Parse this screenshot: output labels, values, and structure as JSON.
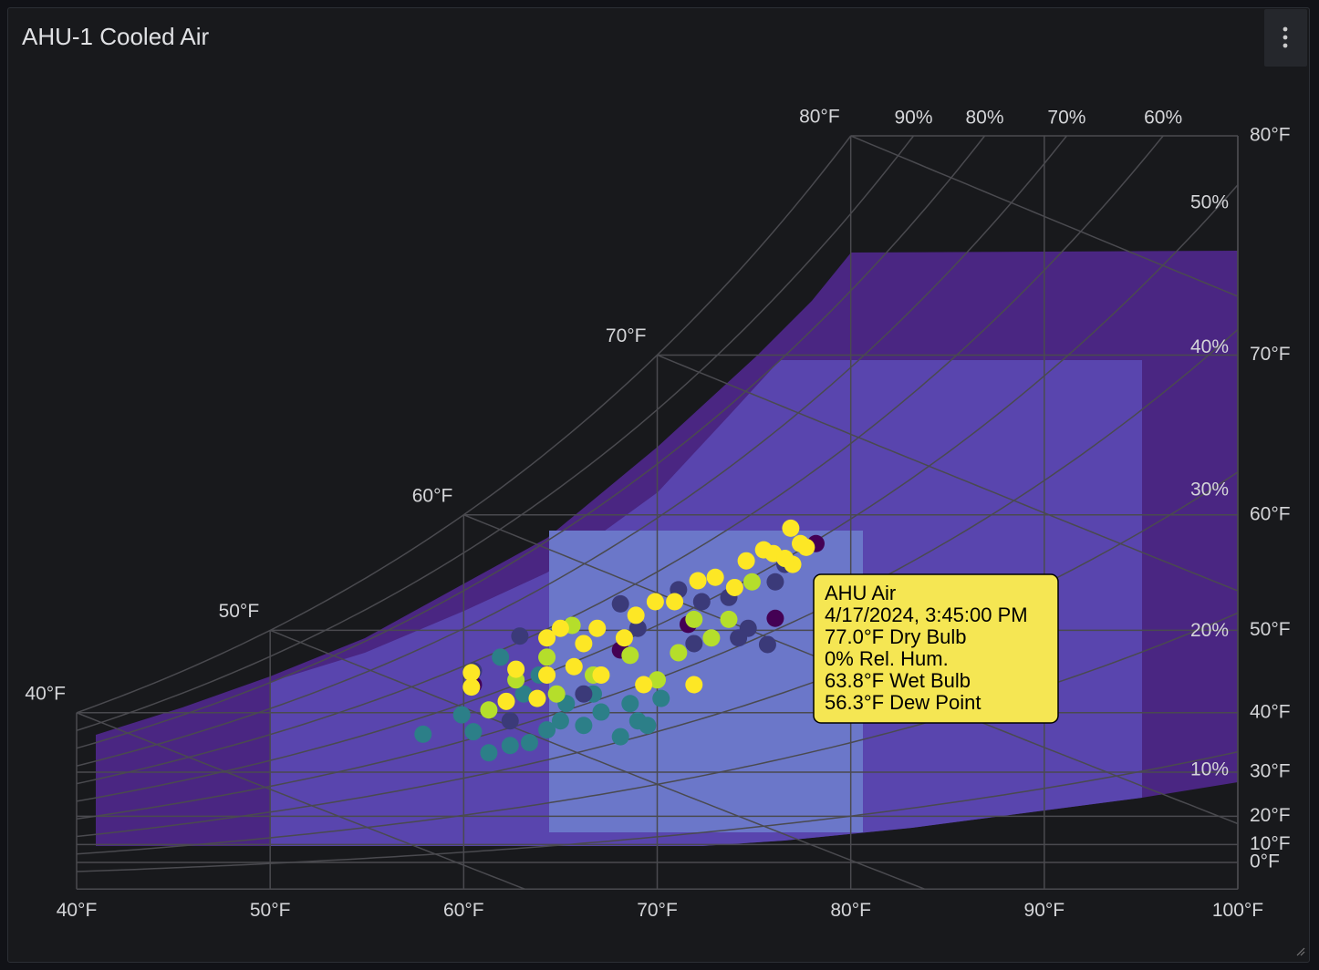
{
  "panel": {
    "title": "AHU-1 Cooled Air"
  },
  "chart_data": {
    "type": "psychrometric",
    "y_scale": "humidity-ratio",
    "xlim": [
      40,
      100
    ],
    "xticks": [
      {
        "value": 40,
        "label": "40°F"
      },
      {
        "value": 50,
        "label": "50°F"
      },
      {
        "value": 60,
        "label": "60°F"
      },
      {
        "value": 70,
        "label": "70°F"
      },
      {
        "value": 80,
        "label": "80°F"
      },
      {
        "value": 90,
        "label": "90°F"
      },
      {
        "value": 100,
        "label": "100°F"
      }
    ],
    "ylim": [
      0,
      80
    ],
    "yticks": [
      {
        "value": 0,
        "label": "0°F"
      },
      {
        "value": 10,
        "label": "10°F"
      },
      {
        "value": 20,
        "label": "20°F"
      },
      {
        "value": 30,
        "label": "30°F"
      },
      {
        "value": 40,
        "label": "40°F"
      },
      {
        "value": 50,
        "label": "50°F"
      },
      {
        "value": 60,
        "label": "60°F"
      },
      {
        "value": 70,
        "label": "70°F"
      },
      {
        "value": 80,
        "label": "80°F"
      }
    ],
    "wet_bulb_lines": [
      {
        "value": 40,
        "label": "40°F"
      },
      {
        "value": 50,
        "label": "50°F"
      },
      {
        "value": 60,
        "label": "60°F"
      },
      {
        "value": 70,
        "label": "70°F"
      },
      {
        "value": 80,
        "label": "80°F"
      }
    ],
    "rh_lines": [
      {
        "value": 90,
        "label": "90%"
      },
      {
        "value": 80,
        "label": "80%"
      },
      {
        "value": 70,
        "label": "70%"
      },
      {
        "value": 60,
        "label": "60%"
      },
      {
        "value": 50,
        "label": "50%"
      },
      {
        "value": 40,
        "label": "40%"
      },
      {
        "value": 30,
        "label": "30%"
      },
      {
        "value": 20,
        "label": "20%"
      },
      {
        "value": 10,
        "label": "10%"
      }
    ],
    "grid_color": "#4a4a4f",
    "series": [
      {
        "color": "#2c7f88",
        "x": [
          57.9,
          61.3,
          60.5,
          61.9,
          59.9,
          62.4,
          63.4,
          64.3,
          65.0,
          66.2,
          67.1,
          68.1,
          69.0,
          63.1,
          65.3,
          66.7,
          68.6,
          69.5,
          70.2,
          63.9
        ],
        "y": [
          36.7,
          33.5,
          37.1,
          47.1,
          39.7,
          34.8,
          35.3,
          37.4,
          38.8,
          38.1,
          40.1,
          36.3,
          38.8,
          42.6,
          41.3,
          42.6,
          41.3,
          38.1,
          42.0,
          45.0
        ]
      },
      {
        "color": "#3b3a79",
        "x": [
          62.9,
          68.1,
          71.1,
          72.3,
          73.7,
          74.7,
          75.7,
          74.2,
          71.9,
          69.0,
          66.2,
          62.4,
          60.5,
          76.1,
          76.6
        ],
        "y": [
          49.4,
          52.6,
          53.9,
          52.8,
          53.2,
          50.2,
          48.5,
          49.2,
          48.6,
          50.2,
          42.6,
          38.8,
          45.5,
          54.6,
          56.1
        ]
      },
      {
        "color": "#440154",
        "x": [
          78.2,
          76.1,
          71.6,
          68.1,
          60.5
        ],
        "y": [
          57.8,
          51.2,
          50.6,
          47.9,
          43.8
        ]
      },
      {
        "color": "#b5de2b",
        "x": [
          61.3,
          64.3,
          65.6,
          66.7,
          68.6,
          70.0,
          71.1,
          72.8,
          73.7,
          74.9,
          71.9,
          62.7,
          64.8
        ],
        "y": [
          40.4,
          47.1,
          50.5,
          45.0,
          47.3,
          44.4,
          47.6,
          49.2,
          51.1,
          54.6,
          51.1,
          44.4,
          42.6
        ]
      },
      {
        "color": "#fde725",
        "x": [
          60.4,
          60.4,
          62.7,
          64.3,
          65.0,
          66.2,
          66.9,
          68.3,
          68.9,
          69.9,
          70.9,
          72.1,
          73.0,
          74.0,
          74.6,
          75.5,
          76.0,
          76.9,
          77.4,
          77.7,
          77.0,
          76.6,
          62.2,
          63.8,
          65.7,
          67.1,
          64.3,
          69.3,
          71.9
        ],
        "y": [
          45.3,
          43.5,
          45.7,
          49.2,
          50.2,
          48.6,
          50.2,
          49.2,
          51.5,
          52.8,
          52.8,
          54.7,
          55.0,
          54.1,
          56.4,
          57.3,
          57.0,
          59.0,
          57.8,
          57.5,
          56.1,
          56.6,
          41.6,
          42.0,
          46.0,
          45.0,
          45.0,
          43.8,
          43.8
        ]
      }
    ],
    "tooltip": {
      "title": "AHU Air",
      "time": "4/17/2024, 3:45:00 PM",
      "lines": [
        "77.0°F Dry Bulb",
        "0% Rel. Hum.",
        "63.8°F Wet Bulb",
        "56.3°F Dew Point"
      ]
    }
  }
}
